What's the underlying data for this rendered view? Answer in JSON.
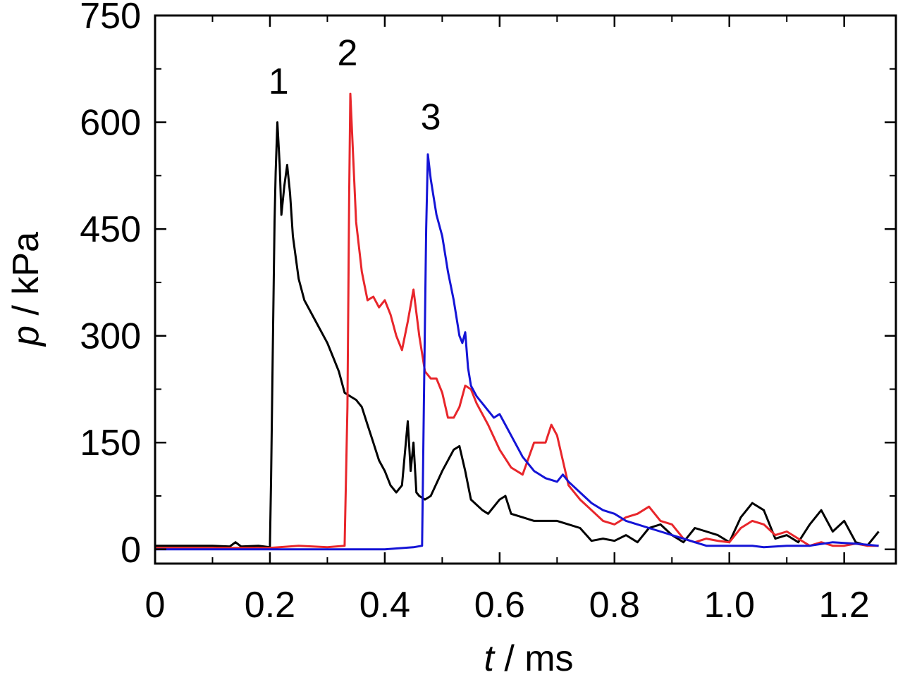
{
  "chart_data": {
    "type": "line",
    "title": "",
    "xlabel": {
      "var": "t",
      "unit": " / ms"
    },
    "ylabel": {
      "var": "p",
      "unit": " / kPa"
    },
    "xlim": [
      0,
      1.29
    ],
    "ylim": [
      -20,
      750
    ],
    "x_ticks": [
      "0",
      "0.2",
      "0.4",
      "0.6",
      "0.8",
      "1.0",
      "1.2"
    ],
    "x_tick_values": [
      0,
      0.2,
      0.4,
      0.6,
      0.8,
      1.0,
      1.2
    ],
    "y_ticks": [
      "0",
      "150",
      "300",
      "450",
      "600",
      "750"
    ],
    "y_tick_values": [
      0,
      150,
      300,
      450,
      600,
      750
    ],
    "grid": false,
    "series": [
      {
        "name": "1",
        "color": "#000000",
        "label_at": [
          0.215,
          640
        ],
        "points": [
          [
            0,
            5
          ],
          [
            0.05,
            5
          ],
          [
            0.1,
            5
          ],
          [
            0.13,
            4
          ],
          [
            0.14,
            10
          ],
          [
            0.15,
            4
          ],
          [
            0.18,
            5
          ],
          [
            0.2,
            3
          ],
          [
            0.202,
            100
          ],
          [
            0.205,
            280
          ],
          [
            0.208,
            460
          ],
          [
            0.21,
            530
          ],
          [
            0.213,
            600
          ],
          [
            0.217,
            540
          ],
          [
            0.22,
            470
          ],
          [
            0.225,
            510
          ],
          [
            0.23,
            540
          ],
          [
            0.235,
            500
          ],
          [
            0.24,
            440
          ],
          [
            0.25,
            380
          ],
          [
            0.26,
            350
          ],
          [
            0.28,
            320
          ],
          [
            0.3,
            290
          ],
          [
            0.31,
            270
          ],
          [
            0.32,
            250
          ],
          [
            0.33,
            220
          ],
          [
            0.34,
            215
          ],
          [
            0.35,
            210
          ],
          [
            0.36,
            200
          ],
          [
            0.37,
            175
          ],
          [
            0.38,
            150
          ],
          [
            0.39,
            125
          ],
          [
            0.4,
            110
          ],
          [
            0.41,
            90
          ],
          [
            0.42,
            80
          ],
          [
            0.43,
            90
          ],
          [
            0.44,
            180
          ],
          [
            0.445,
            110
          ],
          [
            0.45,
            150
          ],
          [
            0.455,
            80
          ],
          [
            0.46,
            75
          ],
          [
            0.47,
            70
          ],
          [
            0.48,
            75
          ],
          [
            0.5,
            110
          ],
          [
            0.52,
            140
          ],
          [
            0.53,
            145
          ],
          [
            0.54,
            110
          ],
          [
            0.55,
            70
          ],
          [
            0.57,
            55
          ],
          [
            0.58,
            50
          ],
          [
            0.6,
            70
          ],
          [
            0.61,
            75
          ],
          [
            0.62,
            50
          ],
          [
            0.64,
            45
          ],
          [
            0.66,
            40
          ],
          [
            0.7,
            40
          ],
          [
            0.72,
            35
          ],
          [
            0.74,
            30
          ],
          [
            0.76,
            12
          ],
          [
            0.78,
            15
          ],
          [
            0.8,
            12
          ],
          [
            0.82,
            20
          ],
          [
            0.84,
            10
          ],
          [
            0.86,
            30
          ],
          [
            0.88,
            35
          ],
          [
            0.9,
            20
          ],
          [
            0.92,
            10
          ],
          [
            0.94,
            30
          ],
          [
            0.96,
            25
          ],
          [
            0.98,
            20
          ],
          [
            1.0,
            10
          ],
          [
            1.02,
            45
          ],
          [
            1.04,
            65
          ],
          [
            1.06,
            55
          ],
          [
            1.08,
            15
          ],
          [
            1.1,
            20
          ],
          [
            1.12,
            10
          ],
          [
            1.14,
            35
          ],
          [
            1.16,
            55
          ],
          [
            1.18,
            25
          ],
          [
            1.2,
            40
          ],
          [
            1.22,
            10
          ],
          [
            1.24,
            5
          ],
          [
            1.26,
            25
          ]
        ]
      },
      {
        "name": "2",
        "color": "#e8262b",
        "label_at": [
          0.335,
          680
        ],
        "points": [
          [
            0,
            2
          ],
          [
            0.1,
            2
          ],
          [
            0.2,
            2
          ],
          [
            0.25,
            5
          ],
          [
            0.3,
            3
          ],
          [
            0.33,
            5
          ],
          [
            0.335,
            200
          ],
          [
            0.338,
            500
          ],
          [
            0.34,
            640
          ],
          [
            0.345,
            550
          ],
          [
            0.35,
            460
          ],
          [
            0.36,
            390
          ],
          [
            0.37,
            350
          ],
          [
            0.38,
            355
          ],
          [
            0.39,
            340
          ],
          [
            0.4,
            350
          ],
          [
            0.41,
            330
          ],
          [
            0.42,
            300
          ],
          [
            0.43,
            280
          ],
          [
            0.44,
            320
          ],
          [
            0.45,
            365
          ],
          [
            0.46,
            300
          ],
          [
            0.47,
            250
          ],
          [
            0.48,
            240
          ],
          [
            0.49,
            240
          ],
          [
            0.5,
            220
          ],
          [
            0.51,
            185
          ],
          [
            0.52,
            185
          ],
          [
            0.53,
            200
          ],
          [
            0.54,
            230
          ],
          [
            0.55,
            225
          ],
          [
            0.56,
            205
          ],
          [
            0.58,
            175
          ],
          [
            0.6,
            140
          ],
          [
            0.62,
            115
          ],
          [
            0.64,
            105
          ],
          [
            0.66,
            150
          ],
          [
            0.68,
            150
          ],
          [
            0.69,
            175
          ],
          [
            0.7,
            160
          ],
          [
            0.72,
            90
          ],
          [
            0.74,
            70
          ],
          [
            0.76,
            55
          ],
          [
            0.78,
            40
          ],
          [
            0.8,
            35
          ],
          [
            0.82,
            45
          ],
          [
            0.84,
            50
          ],
          [
            0.86,
            60
          ],
          [
            0.88,
            40
          ],
          [
            0.9,
            35
          ],
          [
            0.92,
            15
          ],
          [
            0.94,
            10
          ],
          [
            0.96,
            15
          ],
          [
            0.98,
            12
          ],
          [
            1.0,
            10
          ],
          [
            1.02,
            30
          ],
          [
            1.04,
            40
          ],
          [
            1.06,
            35
          ],
          [
            1.08,
            20
          ],
          [
            1.1,
            25
          ],
          [
            1.12,
            15
          ],
          [
            1.14,
            5
          ],
          [
            1.16,
            10
          ],
          [
            1.18,
            5
          ],
          [
            1.2,
            5
          ],
          [
            1.22,
            8
          ],
          [
            1.24,
            5
          ],
          [
            1.26,
            5
          ]
        ]
      },
      {
        "name": "3",
        "color": "#1414d6",
        "label_at": [
          0.48,
          590
        ],
        "points": [
          [
            0,
            0
          ],
          [
            0.1,
            0
          ],
          [
            0.2,
            0
          ],
          [
            0.3,
            0
          ],
          [
            0.4,
            0
          ],
          [
            0.45,
            3
          ],
          [
            0.465,
            5
          ],
          [
            0.468,
            200
          ],
          [
            0.472,
            450
          ],
          [
            0.475,
            555
          ],
          [
            0.48,
            520
          ],
          [
            0.49,
            470
          ],
          [
            0.5,
            440
          ],
          [
            0.51,
            390
          ],
          [
            0.52,
            350
          ],
          [
            0.53,
            300
          ],
          [
            0.535,
            290
          ],
          [
            0.54,
            305
          ],
          [
            0.545,
            255
          ],
          [
            0.55,
            230
          ],
          [
            0.56,
            215
          ],
          [
            0.57,
            205
          ],
          [
            0.58,
            195
          ],
          [
            0.59,
            185
          ],
          [
            0.6,
            190
          ],
          [
            0.61,
            175
          ],
          [
            0.62,
            160
          ],
          [
            0.63,
            145
          ],
          [
            0.64,
            130
          ],
          [
            0.66,
            110
          ],
          [
            0.68,
            100
          ],
          [
            0.7,
            95
          ],
          [
            0.71,
            105
          ],
          [
            0.72,
            95
          ],
          [
            0.74,
            80
          ],
          [
            0.76,
            65
          ],
          [
            0.78,
            55
          ],
          [
            0.8,
            50
          ],
          [
            0.82,
            40
          ],
          [
            0.84,
            35
          ],
          [
            0.86,
            30
          ],
          [
            0.88,
            25
          ],
          [
            0.9,
            20
          ],
          [
            0.92,
            15
          ],
          [
            0.94,
            10
          ],
          [
            0.96,
            5
          ],
          [
            0.98,
            5
          ],
          [
            1.0,
            5
          ],
          [
            1.02,
            5
          ],
          [
            1.04,
            5
          ],
          [
            1.06,
            3
          ],
          [
            1.1,
            5
          ],
          [
            1.14,
            5
          ],
          [
            1.18,
            10
          ],
          [
            1.22,
            8
          ],
          [
            1.26,
            5
          ]
        ]
      }
    ]
  }
}
